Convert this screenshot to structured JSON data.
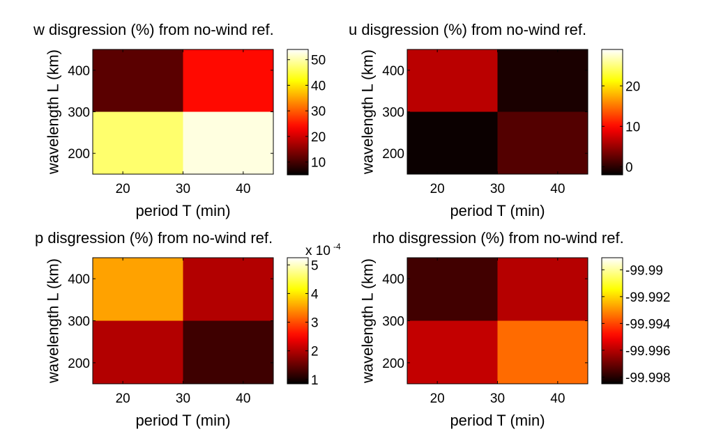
{
  "chart_data": [
    {
      "type": "heatmap",
      "title": "w disgression (%) from no-wind ref.",
      "xlabel": "period T (min)",
      "ylabel": "wavelength L (km)",
      "x_edges": [
        15,
        30,
        45
      ],
      "y_edges": [
        150,
        300,
        450
      ],
      "xlim": [
        15,
        45
      ],
      "ylim": [
        150,
        450
      ],
      "xticks": [
        20,
        30,
        40
      ],
      "yticks": [
        200,
        300,
        400
      ],
      "grid": [
        [
          47.0,
          52.5
        ],
        [
          11.5,
          24.0
        ]
      ],
      "clim": [
        5,
        54
      ],
      "colorbar": {
        "ticks": [
          10,
          20,
          30,
          40,
          50
        ],
        "tick_labels": [
          "10",
          "20",
          "30",
          "40",
          "50"
        ],
        "multiplier": ""
      }
    },
    {
      "type": "heatmap",
      "title": "u disgression (%) from no-wind ref.",
      "xlabel": "period T (min)",
      "ylabel": "wavelength L (km)",
      "x_edges": [
        15,
        30,
        45
      ],
      "y_edges": [
        150,
        300,
        450
      ],
      "xlim": [
        15,
        45
      ],
      "ylim": [
        150,
        450
      ],
      "xticks": [
        20,
        30,
        40
      ],
      "yticks": [
        200,
        300,
        400
      ],
      "grid": [
        [
          -1.5,
          1.8
        ],
        [
          6.5,
          -0.8
        ]
      ],
      "clim": [
        -2,
        29
      ],
      "colorbar": {
        "ticks": [
          0,
          10,
          20
        ],
        "tick_labels": [
          "0",
          "10",
          "20"
        ],
        "multiplier": ""
      }
    },
    {
      "type": "heatmap",
      "title": "p disgression (%) from no-wind ref.",
      "xlabel": "period T (min)",
      "ylabel": "wavelength L (km)",
      "x_edges": [
        15,
        30,
        45
      ],
      "y_edges": [
        150,
        300,
        450
      ],
      "xlim": [
        15,
        45
      ],
      "ylim": [
        150,
        450
      ],
      "xticks": [
        20,
        30,
        40
      ],
      "yticks": [
        200,
        300,
        400
      ],
      "grid": [
        [
          2.0,
          1.25
        ],
        [
          3.55,
          2.0
        ]
      ],
      "clim": [
        0.85,
        5.25
      ],
      "colorbar": {
        "ticks": [
          1,
          2,
          3,
          4,
          5
        ],
        "tick_labels": [
          "1",
          "2",
          "3",
          "4",
          "5"
        ],
        "multiplier": "x 10",
        "multiplier_exp": "-4"
      }
    },
    {
      "type": "heatmap",
      "title": "rho disgression (%) from no-wind ref.",
      "xlabel": "period T (min)",
      "ylabel": "wavelength L (km)",
      "x_edges": [
        15,
        30,
        45
      ],
      "y_edges": [
        150,
        300,
        450
      ],
      "xlim": [
        15,
        45
      ],
      "ylim": [
        150,
        450
      ],
      "xticks": [
        20,
        30,
        40
      ],
      "yticks": [
        200,
        300,
        400
      ],
      "grid": [
        [
          -99.9958,
          -99.9935
        ],
        [
          -99.9976,
          -99.996
        ]
      ],
      "clim": [
        -99.9985,
        -99.9891
      ],
      "colorbar": {
        "ticks": [
          -99.998,
          -99.996,
          -99.994,
          -99.992,
          -99.99
        ],
        "tick_labels": [
          "-99.998",
          "-99.996",
          "-99.994",
          "-99.992",
          "-99.99"
        ],
        "multiplier": ""
      }
    }
  ]
}
